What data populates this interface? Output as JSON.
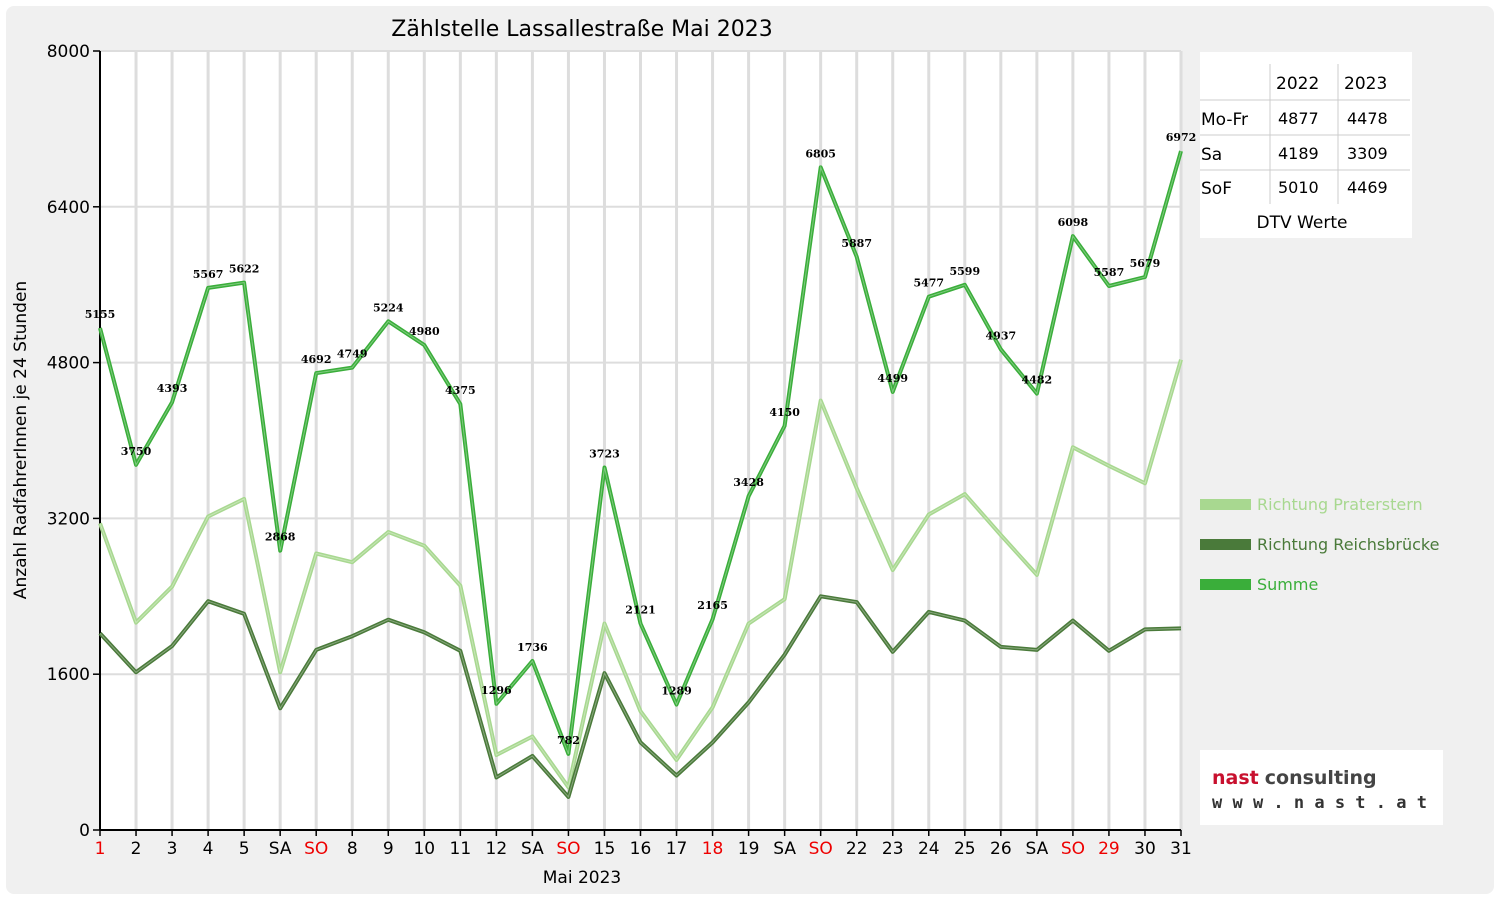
{
  "chart_data": {
    "type": "line",
    "title": "Zählstelle Lassallestraße Mai 2023",
    "xlabel": "Mai 2023",
    "ylabel": "Anzahl RadfahrerInnen je 24 Stunden",
    "ylim": [
      0,
      8000
    ],
    "yticks": [
      "0",
      "1600",
      "3200",
      "4800",
      "6400",
      "8000"
    ],
    "grid": "vertical",
    "legend_position": "right",
    "categories": [
      "1",
      "2",
      "3",
      "4",
      "5",
      "SA",
      "SO",
      "8",
      "9",
      "10",
      "11",
      "12",
      "SA",
      "SO",
      "15",
      "16",
      "17",
      "18",
      "19",
      "SA",
      "SO",
      "22",
      "23",
      "24",
      "25",
      "26",
      "SA",
      "SO",
      "29",
      "30",
      "31"
    ],
    "red_categories": [
      0,
      6,
      13,
      17,
      20,
      27,
      28
    ],
    "series": [
      {
        "name": "Richtung Praterstern",
        "color": "#a8d890",
        "values": [
          3150,
          2130,
          2500,
          3220,
          3400,
          1620,
          2840,
          2750,
          3060,
          2920,
          2510,
          770,
          960,
          440,
          2120,
          1220,
          720,
          1260,
          2120,
          2370,
          4410,
          3510,
          2670,
          3240,
          3450,
          3030,
          2620,
          3930,
          3740,
          3560,
          4830
        ]
      },
      {
        "name": "Richtung Reichsbrücke",
        "color": "#4a7a3a",
        "values": [
          2020,
          1620,
          1890,
          2350,
          2220,
          1250,
          1850,
          1990,
          2160,
          2030,
          1840,
          540,
          760,
          340,
          1610,
          900,
          560,
          900,
          1310,
          1800,
          2400,
          2340,
          1830,
          2240,
          2150,
          1880,
          1850,
          2150,
          1840,
          2060,
          2070
        ]
      },
      {
        "name": "Summe",
        "color": "#3aae3a",
        "values": [
          5155,
          3750,
          4393,
          5567,
          5622,
          2868,
          4692,
          4749,
          5224,
          4980,
          4375,
          1296,
          1736,
          782,
          3723,
          2121,
          1289,
          2165,
          3428,
          4150,
          6805,
          5887,
          4499,
          5477,
          5599,
          4937,
          4482,
          6098,
          5587,
          5679,
          6972
        ],
        "labels": [
          "5155",
          "3750",
          "4393",
          "5567",
          "5622",
          "2868",
          "4692",
          "4749",
          "5224",
          "4980",
          "4375",
          "1296",
          "1736",
          "782",
          "3723",
          "2121",
          "1289",
          "2165",
          "3428",
          "4150",
          "6805",
          "5887",
          "4499",
          "5477",
          "5599",
          "4937",
          "4482",
          "6098",
          "5587",
          "5679",
          "6972"
        ]
      }
    ]
  },
  "dtv_table": {
    "headers": [
      "",
      "2022",
      "2023"
    ],
    "rows": [
      {
        "label": "Mo-Fr",
        "v2022": "4877",
        "v2023": "4478"
      },
      {
        "label": "Sa",
        "v2022": "4189",
        "v2023": "3309"
      },
      {
        "label": "SoF",
        "v2022": "5010",
        "v2023": "4469"
      }
    ],
    "caption": "DTV Werte"
  },
  "logo": {
    "brand_part1": "nast",
    "brand_part2": "consulting",
    "url": "w w w . n a s t . a t",
    "color_part1": "#c8102e",
    "color_part2": "#444444"
  }
}
